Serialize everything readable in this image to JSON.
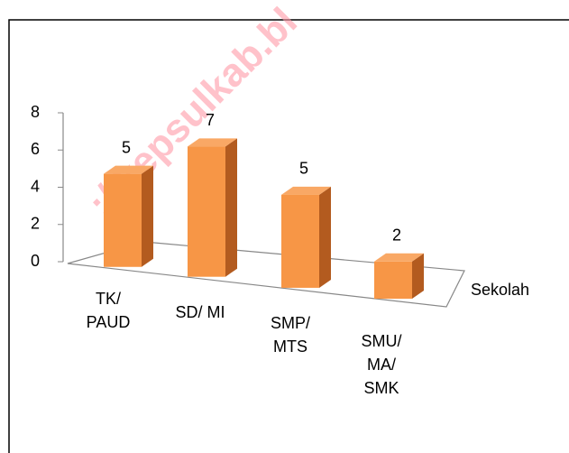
{
  "chart_data": {
    "type": "bar3d",
    "categories": [
      "TK/ PAUD",
      "SD/ MI",
      "SMP/ MTS",
      "SMU/ MA/ SMK"
    ],
    "series": [
      {
        "name": "Sekolah",
        "color": "#f79646",
        "values": [
          5,
          7,
          5,
          2
        ]
      }
    ],
    "ylim": [
      0,
      8
    ],
    "yticks": [
      0,
      2,
      4,
      6,
      8
    ],
    "legend": "right",
    "watermark": "://kepsulkab.bl"
  }
}
